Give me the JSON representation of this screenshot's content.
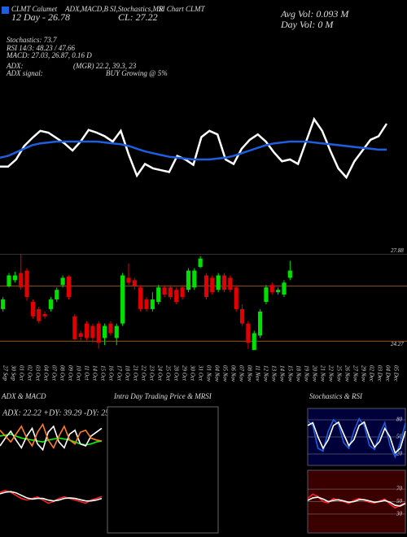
{
  "chart_data": [
    {
      "type": "line",
      "annotations": [
        "CLMT Calumet",
        "ADX,MACD,B",
        "SI,Stochastics,MR",
        "SI Chart CLMT",
        "Avg Vol: 0.093 M",
        "Day Vol: 0 M",
        "12 Day - 26.78",
        "CL: 27.22",
        "Stochastics: 73.7",
        "RSI 14/3: 48.23 / 47.66",
        "MACD: 27.03, 26.87, 0.16 D",
        "ADX:",
        "(MGR) 22.2, 39.3, 23",
        "ADX signal:",
        "BUY Growing @ 5%"
      ],
      "ylim": [
        0,
        100
      ],
      "series": [
        {
          "color": "#ffffff",
          "values": [
            32,
            32,
            40,
            55,
            64,
            72,
            70,
            64,
            58,
            50,
            60,
            73,
            70,
            66,
            60,
            72,
            45,
            22,
            35,
            30,
            28,
            26,
            44,
            40,
            34,
            65,
            72,
            68,
            40,
            35,
            52,
            62,
            68,
            60,
            48,
            38,
            40,
            35,
            60,
            85,
            72,
            50,
            30,
            20,
            38,
            50,
            62,
            66,
            80
          ]
        },
        {
          "color": "#1e5fe0",
          "values": [
            42,
            44,
            48,
            52,
            56,
            58,
            59,
            60,
            60,
            60,
            60,
            60,
            60,
            59,
            58,
            57,
            55,
            52,
            49,
            47,
            45,
            43,
            42,
            41,
            40,
            40,
            40,
            41,
            42,
            44,
            47,
            50,
            53,
            56,
            58,
            59,
            60,
            60,
            60,
            59,
            58,
            57,
            56,
            55,
            54,
            53,
            52,
            51,
            51
          ]
        }
      ]
    },
    {
      "type": "candlestick",
      "categories": [
        "27 Sep",
        "30 Sep",
        "01 Oct",
        "02 Oct",
        "03 Oct",
        "04 Oct",
        "07 Oct",
        "08 Oct",
        "09 Oct",
        "10 Oct",
        "11 Oct",
        "14 Oct",
        "15 Oct",
        "16 Oct",
        "17 Oct",
        "18 Oct",
        "21 Oct",
        "22 Oct",
        "23 Oct",
        "24 Oct",
        "25 Oct",
        "28 Oct",
        "29 Oct",
        "30 Oct",
        "31 Oct",
        "01 Nov",
        "04 Nov",
        "05 Nov",
        "06 Nov",
        "07 Nov",
        "08 Nov",
        "11 Nov",
        "12 Nov",
        "13 Nov",
        "14 Nov",
        "15 Nov",
        "18 Nov",
        "19 Nov",
        "20 Nov",
        "21 Nov",
        "22 Nov",
        "25 Nov",
        "26 Nov",
        "27 Nov",
        "29 Nov",
        "02 Dec",
        "03 Dec",
        "04 Dec",
        "05 Dec"
      ],
      "open": [
        25.6,
        26.55,
        26.8,
        27.1,
        27.2,
        25.9,
        25.6,
        25.4,
        25.6,
        26.0,
        26.6,
        26.95,
        25.3,
        24.6,
        25.0,
        24.9,
        25.0,
        24.4,
        25.0,
        24.4,
        25.0,
        26.9,
        26.8,
        26.5,
        26.0,
        25.6,
        25.9,
        26.5,
        26.5,
        26.4,
        26.5,
        26.4,
        26.5,
        27.35,
        27.0,
        26.9,
        26.4,
        27.0,
        26.9,
        26.5,
        25.6,
        25.0,
        23.9,
        24.5,
        25.9,
        26.6,
        26.3,
        26.2,
        26.9
      ],
      "high": [
        26.1,
        27.1,
        27.15,
        27.88,
        27.3,
        26.0,
        25.7,
        25.5,
        26.1,
        26.5,
        27.0,
        27.0,
        25.4,
        24.7,
        25.1,
        25.0,
        25.1,
        25.0,
        25.1,
        25.0,
        27.1,
        27.5,
        26.9,
        26.6,
        26.1,
        26.3,
        26.6,
        26.6,
        26.6,
        26.5,
        26.6,
        27.3,
        27.3,
        27.8,
        27.1,
        27.0,
        27.1,
        27.1,
        27.0,
        26.6,
        25.8,
        25.1,
        24.7,
        25.6,
        26.6,
        26.7,
        26.5,
        26.8,
        27.6
      ],
      "low": [
        25.5,
        26.5,
        26.7,
        26.4,
        25.95,
        25.2,
        25.0,
        25.2,
        25.5,
        25.9,
        26.5,
        26.0,
        24.3,
        24.3,
        24.3,
        24.2,
        23.95,
        24.1,
        24.5,
        24.1,
        24.9,
        26.6,
        26.4,
        25.5,
        25.5,
        25.5,
        25.8,
        26.1,
        26.0,
        25.8,
        26.0,
        26.3,
        26.4,
        27.3,
        26.0,
        26.2,
        26.3,
        26.3,
        26.3,
        25.5,
        24.9,
        23.95,
        23.9,
        24.4,
        25.8,
        26.2,
        26.2,
        26.1,
        26.8
      ],
      "close": [
        26.0,
        27.0,
        27.0,
        26.5,
        26.1,
        25.3,
        25.1,
        25.3,
        26.0,
        26.4,
        26.9,
        26.1,
        24.35,
        24.45,
        24.4,
        24.4,
        24.2,
        24.9,
        24.6,
        24.9,
        27.0,
        26.7,
        26.55,
        25.6,
        25.6,
        26.0,
        26.5,
        26.2,
        26.1,
        25.9,
        26.1,
        27.2,
        27.2,
        27.7,
        26.1,
        26.3,
        27.0,
        26.4,
        26.4,
        25.6,
        25.0,
        24.2,
        24.6,
        25.5,
        26.5,
        26.3,
        26.4,
        26.7,
        27.2
      ],
      "up_color": "#00e000",
      "down_color": "#e00000",
      "ylim": [
        23.4,
        28.3
      ],
      "yticks": [
        27.88,
        24.27
      ],
      "hlines": [
        26.55,
        24.27
      ]
    },
    {
      "type": "line",
      "title": "ADX & MACD",
      "subtitle": "ADX: 22.22 +DY: 39.29 -DY: 25",
      "ylim": [
        0,
        60
      ],
      "series": [
        {
          "color": "#00ff00",
          "values": [
            30,
            31,
            32,
            30,
            28,
            27,
            26,
            25,
            24,
            26,
            27,
            28,
            27,
            26,
            24,
            22,
            21,
            22,
            24,
            25
          ]
        },
        {
          "color": "#ffffff",
          "values": [
            20,
            28,
            35,
            26,
            18,
            30,
            38,
            22,
            16,
            34,
            40,
            24,
            18,
            32,
            36,
            22,
            20,
            30,
            34,
            38
          ]
        },
        {
          "color": "#ff7f27",
          "values": [
            36,
            30,
            24,
            32,
            40,
            28,
            20,
            34,
            42,
            26,
            18,
            30,
            40,
            26,
            22,
            34,
            36,
            28,
            26,
            25
          ]
        }
      ]
    },
    {
      "type": "line",
      "ylim": [
        -1,
        1
      ],
      "series": [
        {
          "color": "#ff2020",
          "values": [
            0.3,
            0.35,
            0.3,
            0.2,
            0.1,
            0.05,
            0.1,
            0.15,
            0.05,
            -0.05,
            0.0,
            0.1,
            0.15,
            0.1,
            0.05,
            0.0,
            -0.05,
            0.05,
            0.1,
            0.16
          ]
        },
        {
          "color": "#ffffff",
          "values": [
            0.25,
            0.3,
            0.32,
            0.28,
            0.2,
            0.12,
            0.08,
            0.1,
            0.1,
            0.05,
            0.02,
            0.05,
            0.1,
            0.12,
            0.1,
            0.06,
            0.02,
            0.02,
            0.05,
            0.1
          ]
        }
      ]
    },
    {
      "type": "blank",
      "title": "Intra Day Trading Price & MRSI"
    },
    {
      "type": "line",
      "title": "Stochastics & RSI",
      "ylim": [
        0,
        100
      ],
      "yticks": [
        80,
        50,
        20
      ],
      "background": "#00003a",
      "series": [
        {
          "color": "#1e5fe0",
          "values": [
            78,
            70,
            30,
            25,
            60,
            80,
            72,
            40,
            30,
            60,
            82,
            70,
            35,
            28,
            55,
            75,
            35,
            15,
            40,
            74
          ]
        },
        {
          "color": "#ffffff",
          "values": [
            70,
            75,
            50,
            30,
            45,
            70,
            76,
            55,
            35,
            45,
            70,
            76,
            50,
            32,
            42,
            65,
            50,
            22,
            30,
            60
          ]
        }
      ]
    },
    {
      "type": "line",
      "ylim": [
        0,
        100
      ],
      "yticks": [
        70,
        50,
        30
      ],
      "background": "#3a0000",
      "series": [
        {
          "color": "#ff2020",
          "values": [
            55,
            62,
            58,
            50,
            48,
            55,
            52,
            50,
            47,
            52,
            55,
            52,
            49,
            48,
            51,
            54,
            46,
            40,
            44,
            48
          ]
        },
        {
          "color": "#ffffff",
          "values": [
            52,
            56,
            57,
            54,
            50,
            52,
            53,
            51,
            49,
            50,
            53,
            53,
            51,
            49,
            50,
            52,
            49,
            44,
            43,
            47
          ]
        }
      ]
    }
  ]
}
